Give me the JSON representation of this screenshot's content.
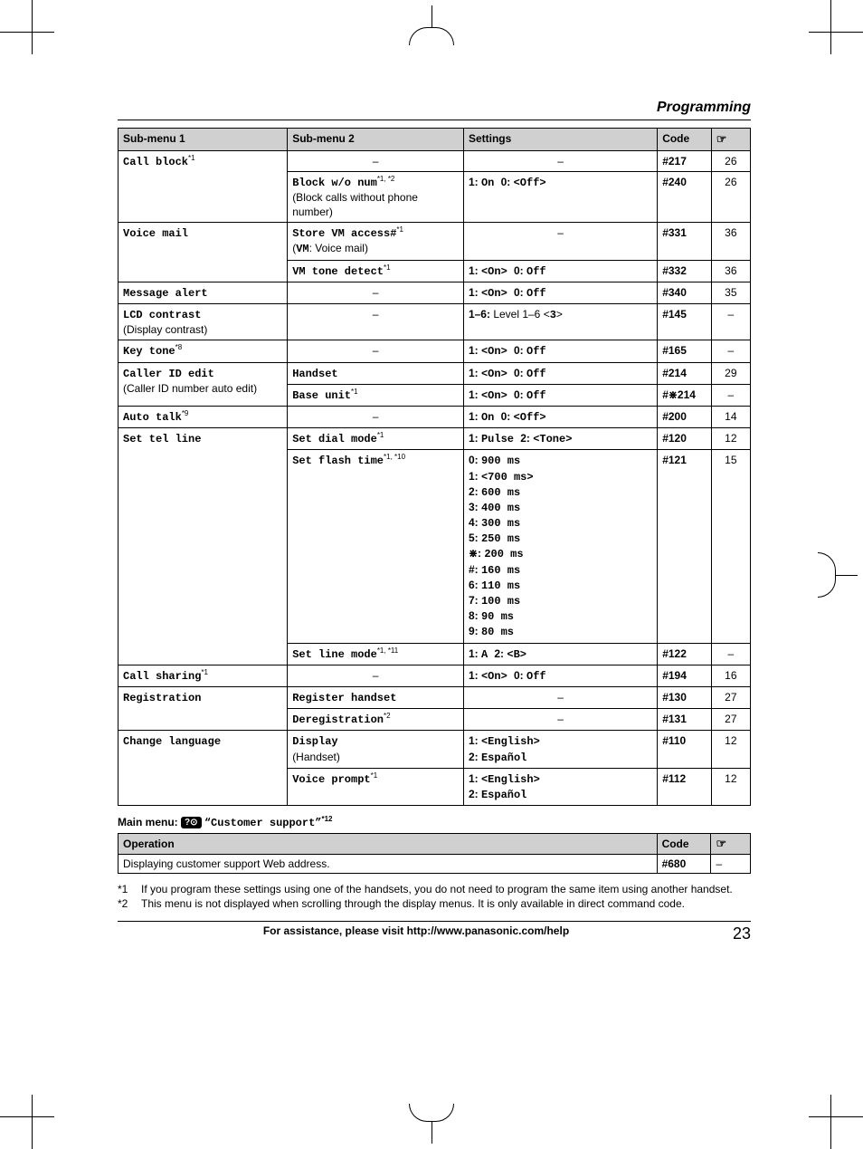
{
  "page": {
    "section_heading": "Programming",
    "footer_text": "For assistance, please visit http://www.panasonic.com/help",
    "page_number": "23"
  },
  "headers": {
    "sub1": "Sub-menu 1",
    "sub2": "Sub-menu 2",
    "settings": "Settings",
    "code": "Code",
    "operation": "Operation"
  },
  "main_menu_line": {
    "prefix": "Main menu: ",
    "icon": "?⊙",
    "label": " “Customer support”",
    "sup": "*12"
  },
  "rows": {
    "call_block": {
      "sub1": "Call block",
      "sup1": "*1",
      "sub2": "–",
      "settings": "–",
      "code": "#217",
      "page": "26"
    },
    "block_wo_num": {
      "sub2": "Block w/o num",
      "sup2": "*1, *2",
      "sub2b": "(Block calls without phone number)",
      "settings_b": "1: ",
      "settings1": "On ",
      "settings_b2": "0: ",
      "settings2": "<Off>",
      "code": "#240",
      "page": "26"
    },
    "voice_mail": {
      "sub1": "Voice mail",
      "sub2": "Store VM access#",
      "sup2": "*1",
      "sub2b": "(VM: Voice mail)",
      "settings": "–",
      "code": "#331",
      "page": "36"
    },
    "vm_tone": {
      "sub2": "VM tone detect",
      "sup2": "*1",
      "s_b1": "1: ",
      "s1": "<On> ",
      "s_b2": "0: ",
      "s2": "Off",
      "code": "#332",
      "page": "36"
    },
    "msg_alert": {
      "sub1": "Message alert",
      "sub2": "–",
      "s_b1": "1: ",
      "s1": "<On> ",
      "s_b2": "0: ",
      "s2": "Off",
      "code": "#340",
      "page": "35"
    },
    "lcd": {
      "sub1": "LCD contrast",
      "sub1b": "(Display contrast)",
      "sub2": "–",
      "s_b1": "1–6: ",
      "s_after": "Level 1–6 <",
      "s_mono2": "3",
      "s_after2": ">",
      "code": "#145",
      "page": "–"
    },
    "key_tone": {
      "sub1": "Key tone",
      "sup1": "*8",
      "sub2": "–",
      "s_b1": "1: ",
      "s1": "<On> ",
      "s_b2": "0: ",
      "s2": "Off",
      "code": "#165",
      "page": "–"
    },
    "caller_id": {
      "sub1": "Caller ID edit",
      "sub1b": "(Caller ID number auto edit)",
      "sub2": "Handset",
      "s_b1": "1: ",
      "s1": "<On> ",
      "s_b2": "0: ",
      "s2": "Off",
      "code": "#214",
      "page": "29"
    },
    "caller_id2": {
      "sub2": "Base unit",
      "sup2": "*1",
      "s_b1": "1: ",
      "s1": "<On> ",
      "s_b2": "0: ",
      "s2": "Off",
      "code": "#⋇214",
      "page": "–"
    },
    "auto_talk": {
      "sub1": "Auto talk",
      "sup1": "*9",
      "sub2": "–",
      "s_b1": "1: ",
      "s1": "On ",
      "s_b2": "0: ",
      "s2": "<Off>",
      "code": "#200",
      "page": "14"
    },
    "set_tel": {
      "sub1": "Set tel line",
      "sub2": "Set dial mode",
      "sup2": "*1",
      "s_b1": "1: ",
      "s1": "Pulse ",
      "s_b2": "2: ",
      "s2": "<Tone>",
      "code": "#120",
      "page": "12"
    },
    "flash": {
      "sub2": "Set flash time",
      "sup2": "*1, *10",
      "code": "#121",
      "page": "15",
      "lines": [
        {
          "b": "0: ",
          "v": "900 ms"
        },
        {
          "b": "1: ",
          "v": "<700 ms>"
        },
        {
          "b": "2: ",
          "v": "600 ms"
        },
        {
          "b": "3: ",
          "v": "400 ms"
        },
        {
          "b": "4: ",
          "v": "300 ms"
        },
        {
          "b": "5: ",
          "v": "250 ms"
        },
        {
          "b": "⋇: ",
          "v": "200 ms"
        },
        {
          "b": "#: ",
          "v": "160 ms"
        },
        {
          "b": "6: ",
          "v": "110 ms"
        },
        {
          "b": "7: ",
          "v": "100 ms"
        },
        {
          "b": "8: ",
          "v": "90 ms"
        },
        {
          "b": "9: ",
          "v": "80 ms"
        }
      ]
    },
    "line_mode": {
      "sub2": "Set line mode",
      "sup2": "*1, *11",
      "s_b1": "1: ",
      "s1": "A ",
      "s_b2": "2: ",
      "s2": "<B>",
      "code": "#122",
      "page": "–"
    },
    "call_sharing": {
      "sub1": "Call sharing",
      "sup1": "*1",
      "sub2": "–",
      "s_b1": "1: ",
      "s1": "<On> ",
      "s_b2": "0: ",
      "s2": "Off",
      "code": "#194",
      "page": "16"
    },
    "registration": {
      "sub1": "Registration",
      "sub2": "Register handset",
      "settings": "–",
      "code": "#130",
      "page": "27"
    },
    "dereg": {
      "sub2": "Deregistration",
      "sup2": "*2",
      "settings": "–",
      "code": "#131",
      "page": "27"
    },
    "lang": {
      "sub1": "Change language",
      "sub2": "Display",
      "sub2b": "(Handset)",
      "s_b1": "1: ",
      "s1": "<English>",
      "br": true,
      "s_b2": "2: ",
      "s2": "Español",
      "code": "#110",
      "page": "12"
    },
    "voice_prompt": {
      "sub2": "Voice prompt",
      "sup2": "*1",
      "s_b1": "1: ",
      "s1": "<English>",
      "br": true,
      "s_b2": "2: ",
      "s2": "Español",
      "code": "#112",
      "page": "12"
    }
  },
  "op_row": {
    "text": "Displaying customer support Web address.",
    "code": "#680",
    "page": "–"
  },
  "footnotes": {
    "f1": {
      "num": "*1",
      "text": "If you program these settings using one of the handsets, you do not need to program the same item using another handset."
    },
    "f2": {
      "num": "*2",
      "text": "This menu is not displayed when scrolling through the display menus. It is only available in direct command code."
    }
  }
}
